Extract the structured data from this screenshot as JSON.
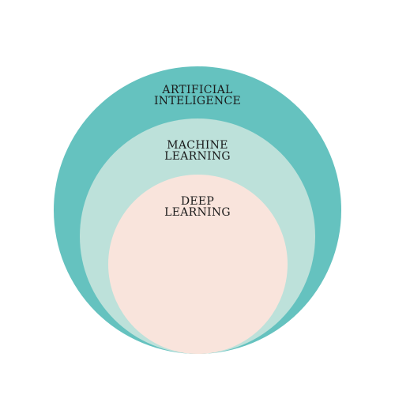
{
  "diagram": {
    "outer": {
      "lines": [
        "ARTIFICIAL",
        "INTELIGENCE"
      ],
      "color": "#65c2bf"
    },
    "middle": {
      "lines": [
        "MACHINE",
        "LEARNING"
      ],
      "color": "#bde1da"
    },
    "inner": {
      "lines": [
        "DEEP",
        "LEARNING"
      ],
      "color": "#f9e4dc"
    }
  }
}
